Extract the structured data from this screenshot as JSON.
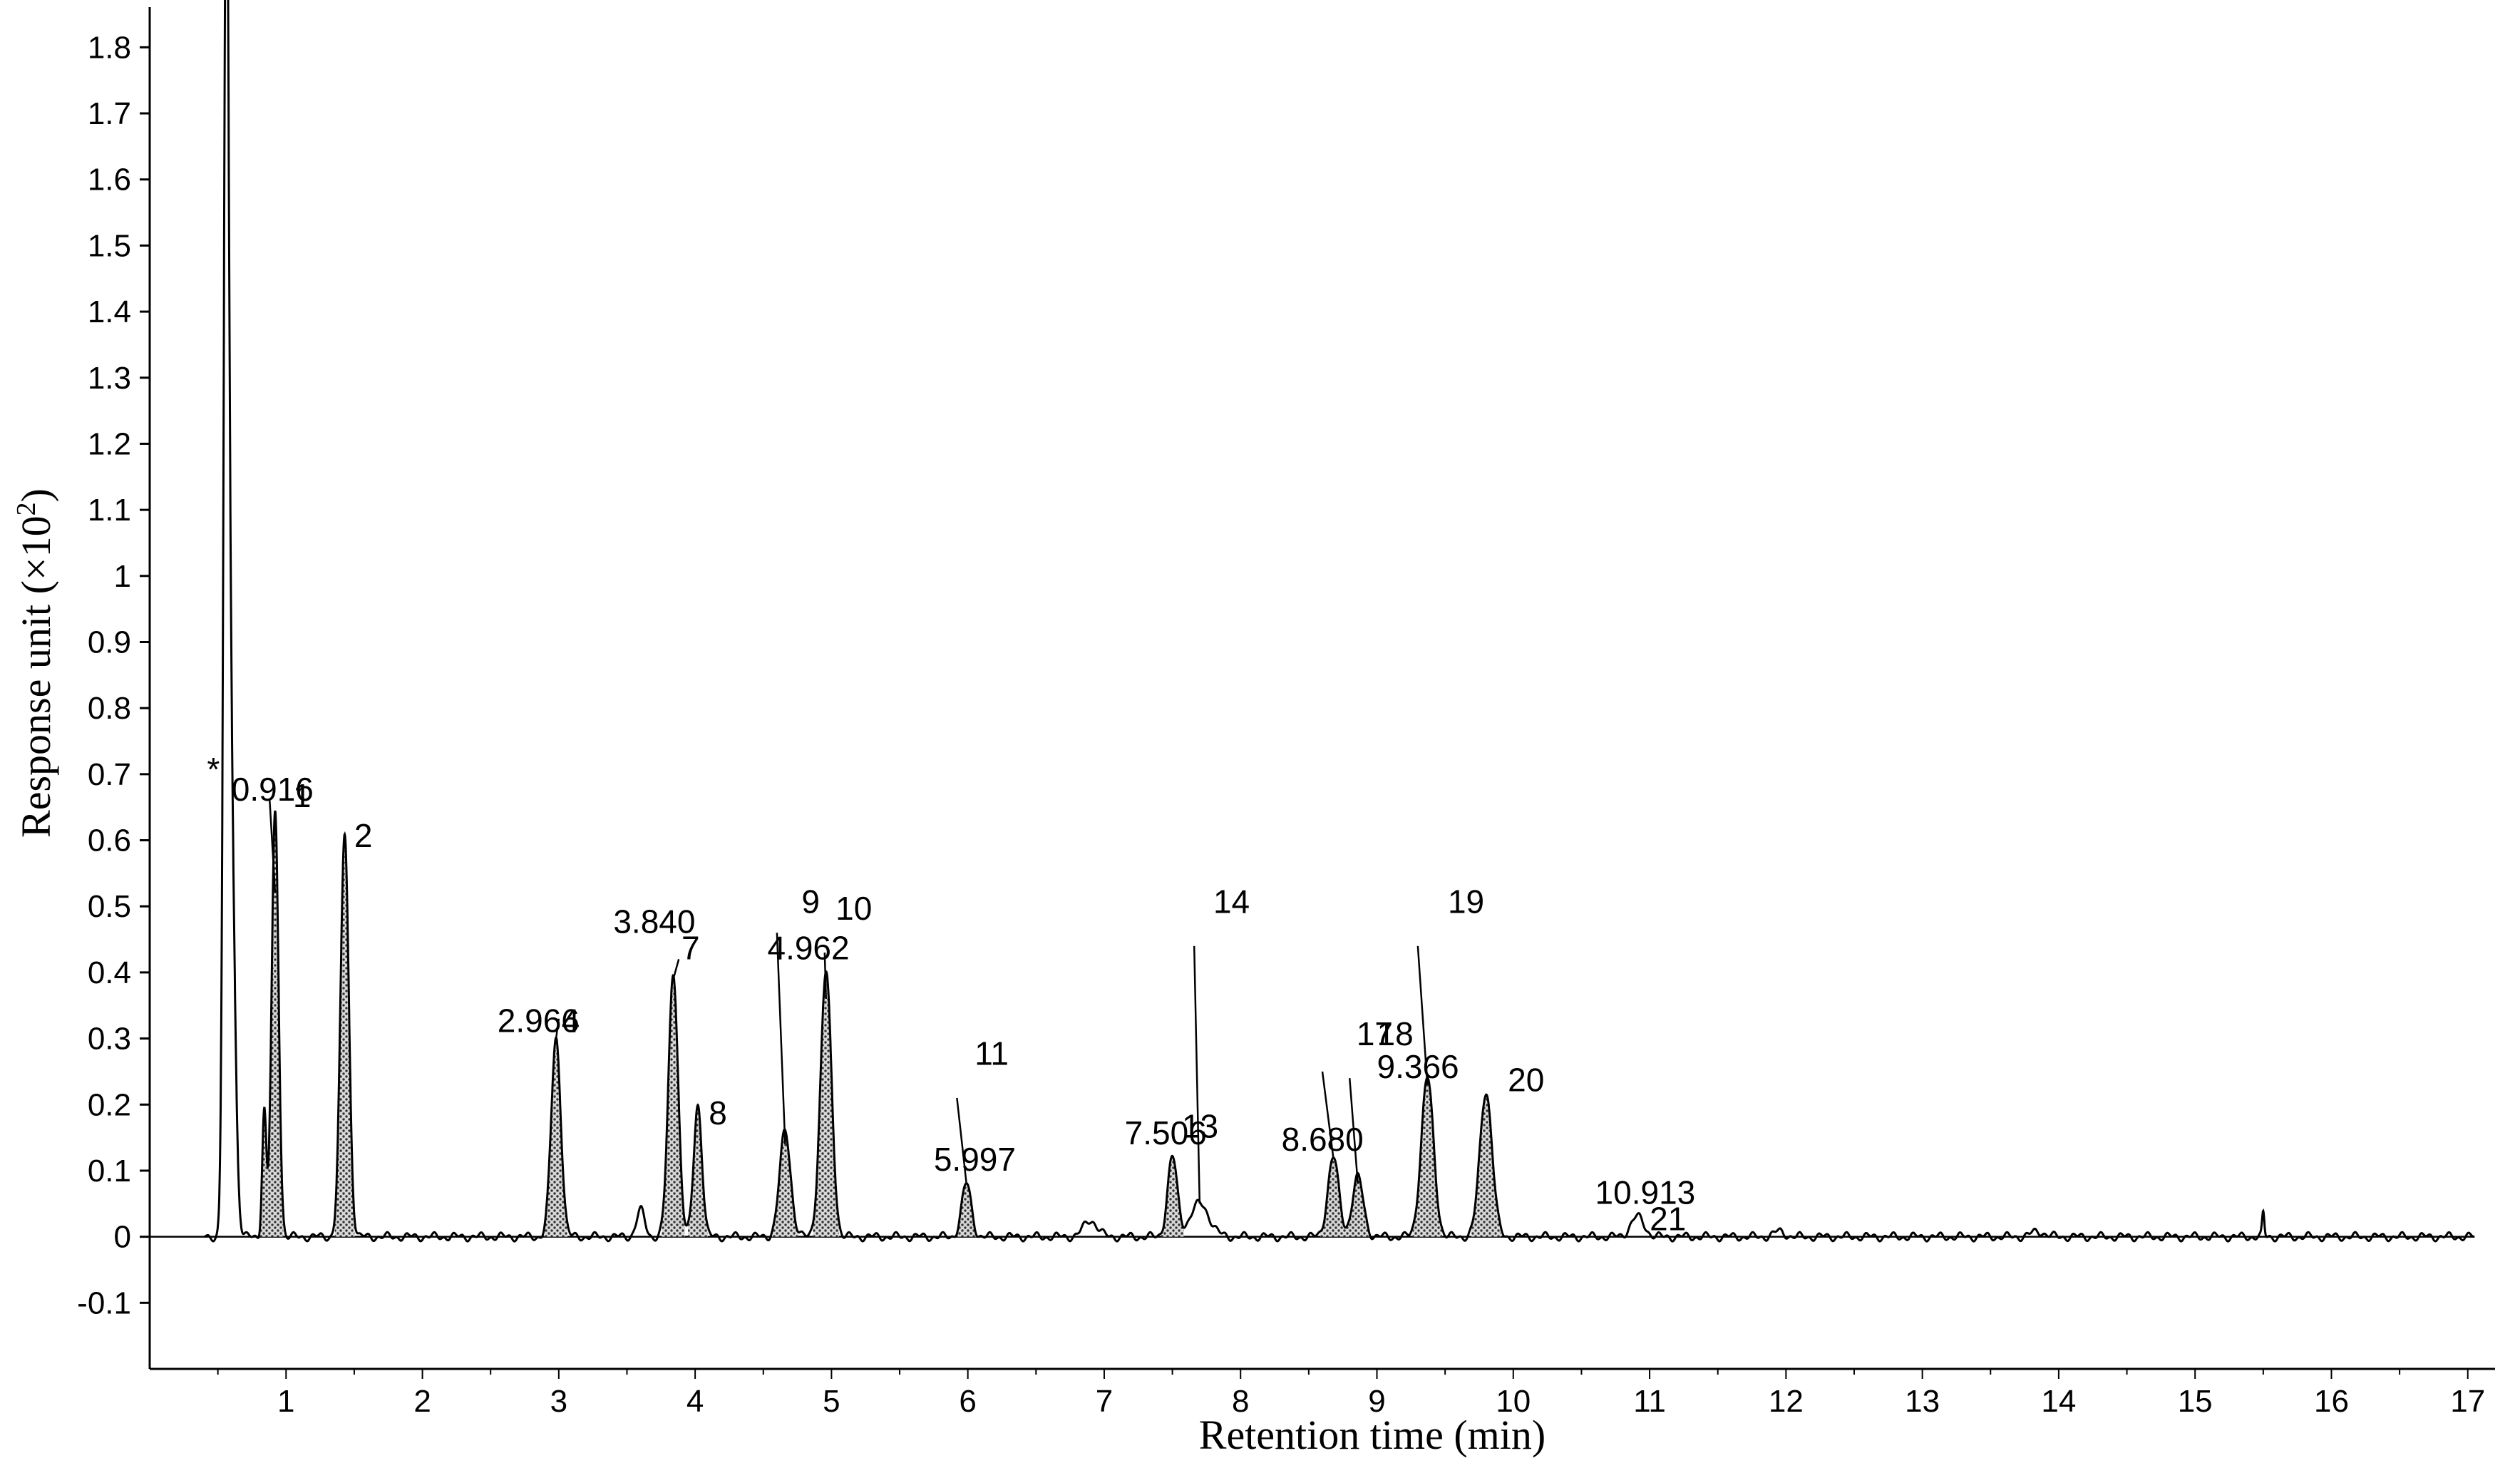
{
  "chart_data": {
    "type": "line",
    "title": "",
    "xlabel": "Retention time (min)",
    "ylabel": "Response unit (×10",
    "ylabel_sup": "2",
    "ylabel_end": ")",
    "xlim": [
      0,
      17.2
    ],
    "ylim": [
      -0.2,
      1.85
    ],
    "x_ticks": [
      "1",
      "2",
      "3",
      "4",
      "5",
      "6",
      "7",
      "8",
      "9",
      "10",
      "11",
      "12",
      "13",
      "14",
      "15",
      "16",
      "17"
    ],
    "y_ticks": [
      "1.8",
      "1.7",
      "1.6",
      "1.5",
      "1.4",
      "1.3",
      "1.2",
      "1.1",
      "1",
      "0.9",
      "0.8",
      "0.7",
      "0.6",
      "0.5",
      "0.4",
      "0.3",
      "0.2",
      "0.1",
      "0",
      "-0.1"
    ],
    "grid": false,
    "series": [
      {
        "peaks": [
          {
            "x": 0.56,
            "h": 1.7,
            "w": 0.018
          },
          {
            "x": 0.59,
            "h": 0.75,
            "w": 0.03
          },
          {
            "x": 0.84,
            "h": 0.19,
            "w": 0.015
          },
          {
            "x": 0.92,
            "h": 0.64,
            "w": 0.025
          },
          {
            "x": 1.43,
            "h": 0.61,
            "w": 0.03
          },
          {
            "x": 2.98,
            "h": 0.3,
            "w": 0.035
          },
          {
            "x": 3.6,
            "h": 0.04,
            "w": 0.03
          },
          {
            "x": 3.84,
            "h": 0.4,
            "w": 0.035
          },
          {
            "x": 4.02,
            "h": 0.2,
            "w": 0.03
          },
          {
            "x": 4.66,
            "h": 0.16,
            "w": 0.04
          },
          {
            "x": 4.96,
            "h": 0.4,
            "w": 0.04
          },
          {
            "x": 5.99,
            "h": 0.08,
            "w": 0.035
          },
          {
            "x": 6.9,
            "h": 0.025,
            "w": 0.05
          },
          {
            "x": 7.5,
            "h": 0.12,
            "w": 0.035
          },
          {
            "x": 7.7,
            "h": 0.05,
            "w": 0.07
          },
          {
            "x": 8.68,
            "h": 0.12,
            "w": 0.04
          },
          {
            "x": 8.86,
            "h": 0.09,
            "w": 0.04
          },
          {
            "x": 9.37,
            "h": 0.24,
            "w": 0.045
          },
          {
            "x": 9.8,
            "h": 0.22,
            "w": 0.045
          },
          {
            "x": 10.91,
            "h": 0.03,
            "w": 0.05
          },
          {
            "x": 11.95,
            "h": 0.008,
            "w": 0.04
          },
          {
            "x": 13.85,
            "h": 0.008,
            "w": 0.05
          },
          {
            "x": 15.5,
            "h": 0.035,
            "w": 0.008
          }
        ]
      }
    ],
    "annotations": [
      {
        "text": "*",
        "x": 0.42,
        "y": 0.69
      },
      {
        "text": "0.916",
        "x": 0.6,
        "y": 0.66
      },
      {
        "text": "1",
        "x": 1.05,
        "y": 0.65
      },
      {
        "text": "2",
        "x": 1.5,
        "y": 0.59
      },
      {
        "text": "2.966",
        "x": 2.55,
        "y": 0.31
      },
      {
        "text": "4",
        "x": 3.02,
        "y": 0.31
      },
      {
        "text": "3.840",
        "x": 3.4,
        "y": 0.46
      },
      {
        "text": "7",
        "x": 3.9,
        "y": 0.42
      },
      {
        "text": "8",
        "x": 4.1,
        "y": 0.17
      },
      {
        "text": "9",
        "x": 4.78,
        "y": 0.49
      },
      {
        "text": "10",
        "x": 5.03,
        "y": 0.48
      },
      {
        "text": "4.962",
        "x": 4.53,
        "y": 0.42
      },
      {
        "text": "11",
        "x": 6.05,
        "y": 0.26
      },
      {
        "text": "5.997",
        "x": 5.75,
        "y": 0.1
      },
      {
        "text": "7.506",
        "x": 7.15,
        "y": 0.14
      },
      {
        "text": "13",
        "x": 7.57,
        "y": 0.15
      },
      {
        "text": "14",
        "x": 7.8,
        "y": 0.49
      },
      {
        "text": "8.680",
        "x": 8.3,
        "y": 0.13
      },
      {
        "text": "17",
        "x": 8.85,
        "y": 0.29
      },
      {
        "text": "18",
        "x": 9.0,
        "y": 0.29
      },
      {
        "text": "9.366",
        "x": 9.0,
        "y": 0.24
      },
      {
        "text": "20",
        "x": 9.96,
        "y": 0.22
      },
      {
        "text": "19",
        "x": 9.52,
        "y": 0.49
      },
      {
        "text": "10.913",
        "x": 10.6,
        "y": 0.05
      },
      {
        "text": "21",
        "x": 11.0,
        "y": 0.01
      }
    ],
    "colors": {
      "line": "#000000",
      "fill": "#9a9a9a",
      "axis": "#000000"
    }
  }
}
